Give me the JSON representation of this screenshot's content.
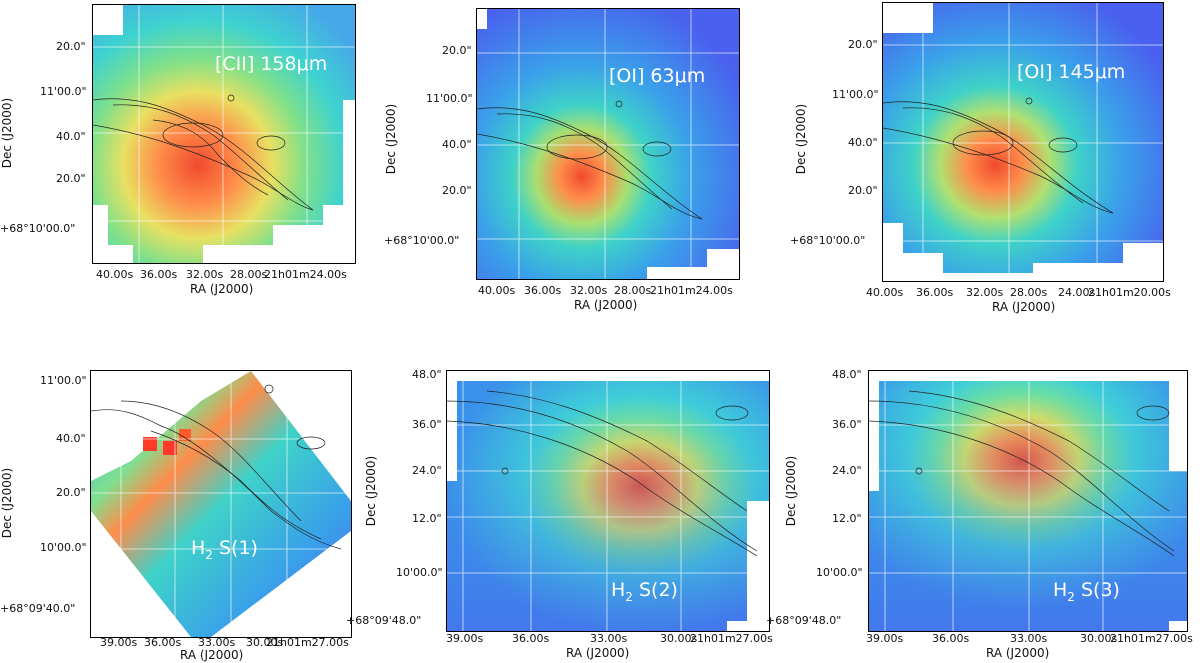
{
  "panels": [
    {
      "id": "cii",
      "label": "[CII] 158μm",
      "xlabel": "RA (J2000)",
      "ylabel": "Dec (J2000)",
      "xticks": [
        "40.00s",
        "36.00s",
        "32.00s",
        "28.00s",
        "21h01m24.00s"
      ],
      "yticks": [
        "20.0\"",
        "11'00.0\"",
        "40.0\"",
        "20.0\"",
        "+68°10'00.0\""
      ]
    },
    {
      "id": "oi63",
      "label": "[OI] 63μm",
      "xlabel": "RA (J2000)",
      "ylabel": "Dec (J2000)",
      "xticks": [
        "40.00s",
        "36.00s",
        "32.00s",
        "28.00s",
        "21h01m24.00s"
      ],
      "yticks": [
        "20.0\"",
        "11'00.0\"",
        "40.0\"",
        "20.0\"",
        "+68°10'00.0\""
      ]
    },
    {
      "id": "oi145",
      "label": "[OI] 145μm",
      "xlabel": "RA (J2000)",
      "ylabel": "Dec (J2000)",
      "xticks": [
        "40.00s",
        "36.00s",
        "32.00s",
        "28.00s",
        "24.00s",
        "21h01m20.00s"
      ],
      "yticks": [
        "20.0\"",
        "11'00.0\"",
        "40.0\"",
        "20.0\"",
        "+68°10'00.0\""
      ]
    },
    {
      "id": "h2s1",
      "label_main": "H",
      "label_sub": "2",
      "label_rest": " S(1)",
      "xlabel": "RA (J2000)",
      "ylabel": "Dec (J2000)",
      "xticks": [
        "39.00s",
        "36.00s",
        "33.00s",
        "30.00s",
        "21h01m27.00s"
      ],
      "yticks": [
        "11'00.0\"",
        "40.0\"",
        "20.0\"",
        "10'00.0\"",
        "+68°09'40.0\""
      ]
    },
    {
      "id": "h2s2",
      "label_main": "H",
      "label_sub": "2",
      "label_rest": " S(2)",
      "xlabel": "RA (J2000)",
      "ylabel": "Dec (J2000)",
      "xticks": [
        "39.00s",
        "36.00s",
        "33.00s",
        "30.00s",
        "21h01m27.00s"
      ],
      "yticks": [
        "48.0\"",
        "36.0\"",
        "24.0\"",
        "12.0\"",
        "10'00.0\"",
        "+68°09'48.0\""
      ]
    },
    {
      "id": "h2s3",
      "label_main": "H",
      "label_sub": "2",
      "label_rest": " S(3)",
      "xlabel": "RA (J2000)",
      "ylabel": "Dec (J2000)",
      "xticks": [
        "39.00s",
        "36.00s",
        "33.00s",
        "30.00s",
        "21h01m27.00s"
      ],
      "yticks": [
        "48.0\"",
        "36.0\"",
        "24.0\"",
        "12.0\"",
        "10'00.0\"",
        "+68°09'48.0\""
      ]
    }
  ]
}
